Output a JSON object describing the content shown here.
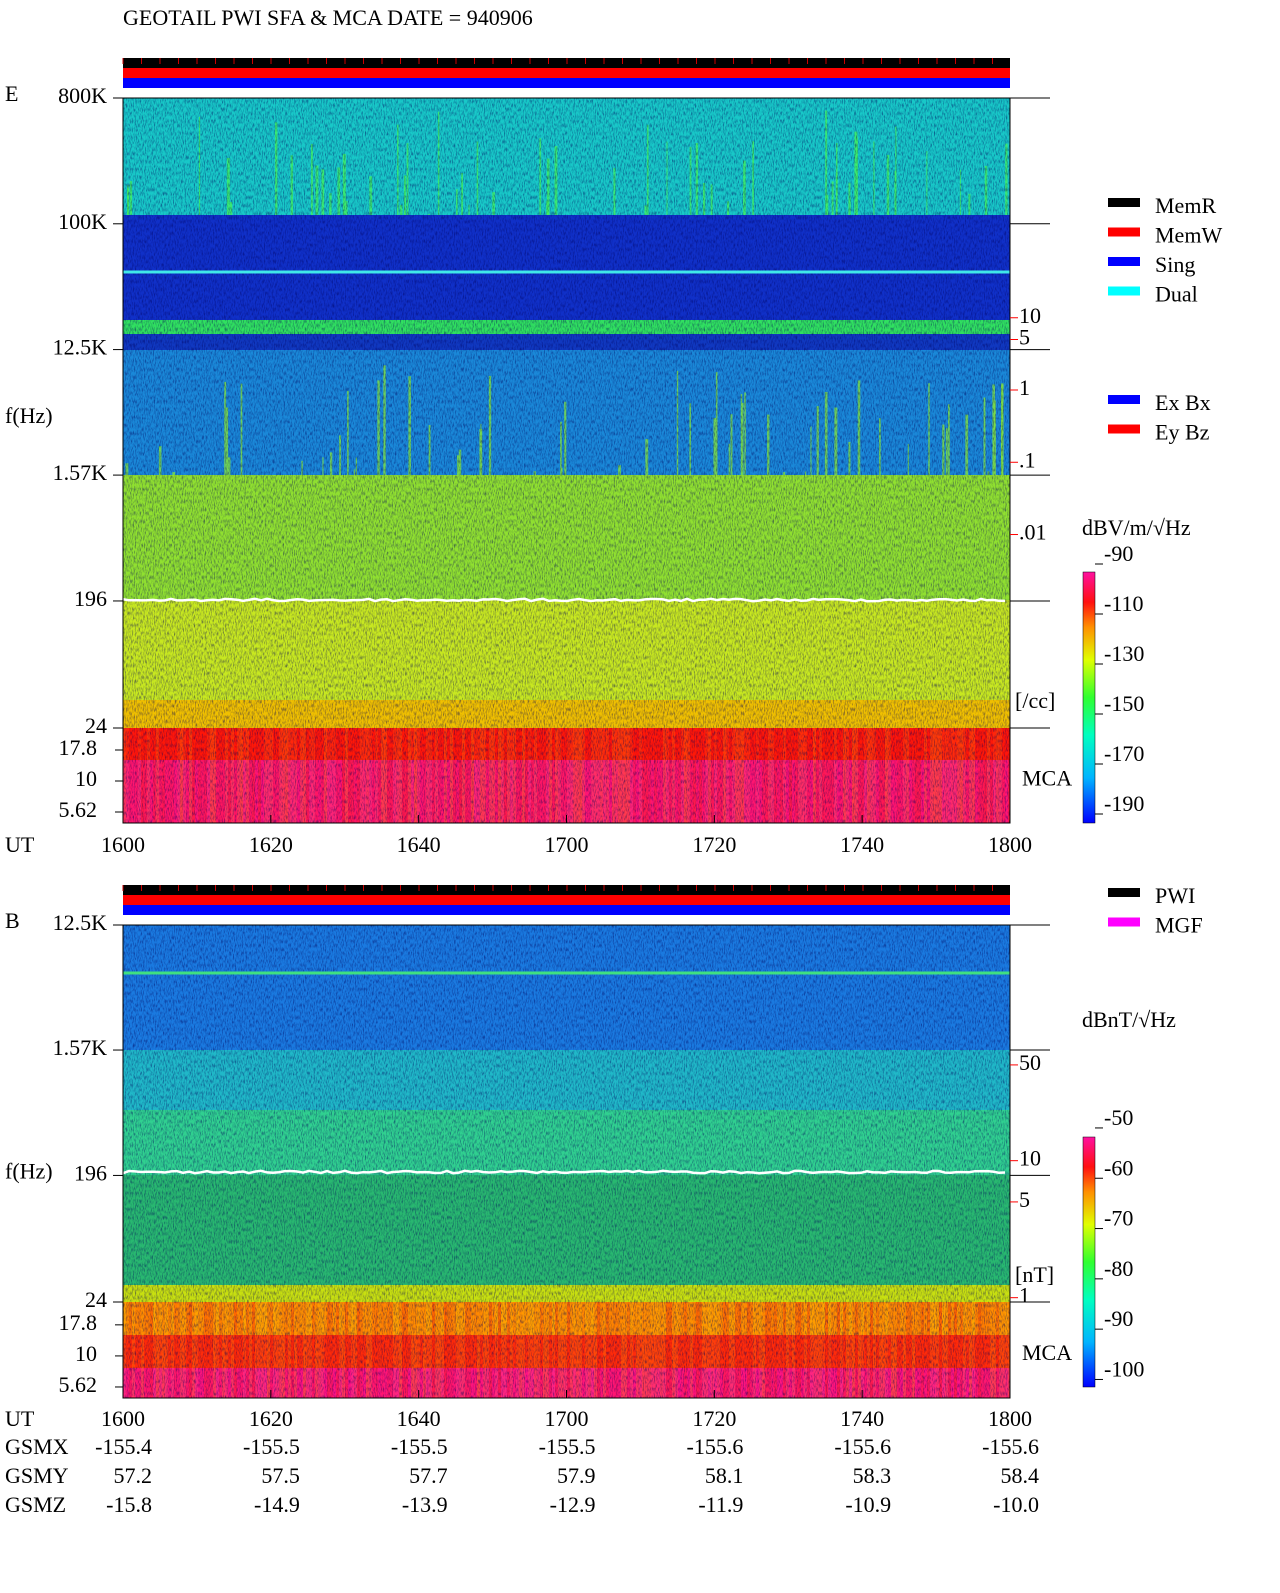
{
  "title": "GEOTAIL  PWI SFA & MCA   DATE = 940906",
  "chart_data": [
    {
      "type": "spectrogram",
      "panel_label": "E",
      "y_label": "f(Hz)",
      "x_label": "UT",
      "log_y": true,
      "ylim": [
        24,
        800000
      ],
      "yticks": [
        {
          "value": 800000,
          "label": "800K"
        },
        {
          "value": 100000,
          "label": "100K"
        },
        {
          "value": 12500,
          "label": "12.5K"
        },
        {
          "value": 1570,
          "label": "1.57K"
        },
        196,
        24
      ],
      "mca_label": "MCA",
      "mca_ylim": [
        4.58,
        26.8
      ],
      "mca_yticks": [
        17.8,
        10,
        5.62
      ],
      "x_labels": [
        "1600",
        "1620",
        "1640",
        "1700",
        "1720",
        "1740",
        "1800"
      ],
      "right_axis": {
        "label": "[/cc]",
        "log": true,
        "color": "#ff0000",
        "ylim": [
          2.1e-05,
          11000
        ],
        "ticks": [
          10,
          5,
          1,
          {
            "value": 0.1,
            "label": ".1"
          },
          {
            "value": 0.01,
            "label": ".01"
          }
        ]
      },
      "colorbar": {
        "label": "dBV/m/√Hz",
        "clim": [
          -193.6,
          -93.2
        ],
        "ticks": [
          -90,
          -110,
          -130,
          -150,
          -170,
          -190
        ]
      },
      "legend": [
        {
          "name": "MemR",
          "color": "#000000"
        },
        {
          "name": "MemW",
          "color": "#ff0000"
        },
        {
          "name": "Sing",
          "color": "#0000ff"
        },
        {
          "name": "Dual",
          "color": "#00ffff"
        }
      ],
      "legend2": [
        {
          "name": "Ex Bx",
          "color": "#0000ff"
        },
        {
          "name": "Ey Bz",
          "color": "#ff0000"
        }
      ]
    },
    {
      "type": "spectrogram",
      "panel_label": "B",
      "y_label": "f(Hz)",
      "x_label": "UT",
      "log_y": true,
      "ylim": [
        24,
        12500
      ],
      "yticks": [
        {
          "value": 12500,
          "label": "12.5K"
        },
        {
          "value": 1570,
          "label": "1.57K"
        },
        196,
        24
      ],
      "mca_label": "MCA",
      "mca_ylim": [
        4.58,
        27.2
      ],
      "mca_yticks": [
        17.8,
        10,
        5.62
      ],
      "x_labels": [
        "1600",
        "1620",
        "1640",
        "1700",
        "1720",
        "1740",
        "1800"
      ],
      "right_axis": {
        "label": "[nT]",
        "log": true,
        "color": "#ff0000",
        "ylim": [
          0.93,
          525
        ],
        "ticks": [
          50,
          10,
          5,
          1
        ]
      },
      "colorbar": {
        "label": "dBnT/√Hz",
        "clim": [
          -101.5,
          -51.8
        ],
        "ticks": [
          -50,
          -60,
          -70,
          -80,
          -90,
          -100
        ]
      },
      "legend": [
        {
          "name": "PWI",
          "color": "#000000"
        },
        {
          "name": "MGF",
          "color": "#ff00ff"
        }
      ]
    }
  ],
  "orbit": {
    "rows": [
      {
        "label": "GSMX",
        "values": [
          "-155.4",
          "-155.5",
          "-155.5",
          "-155.5",
          "-155.6",
          "-155.6",
          "-155.6"
        ]
      },
      {
        "label": "GSMY",
        "values": [
          "57.2",
          "57.5",
          "57.7",
          "57.9",
          "58.1",
          "58.3",
          "58.4"
        ]
      },
      {
        "label": "GSMZ",
        "values": [
          "-15.8",
          "-14.9",
          "-13.9",
          "-12.9",
          "-11.9",
          "-10.9",
          "-10.0"
        ]
      }
    ]
  }
}
